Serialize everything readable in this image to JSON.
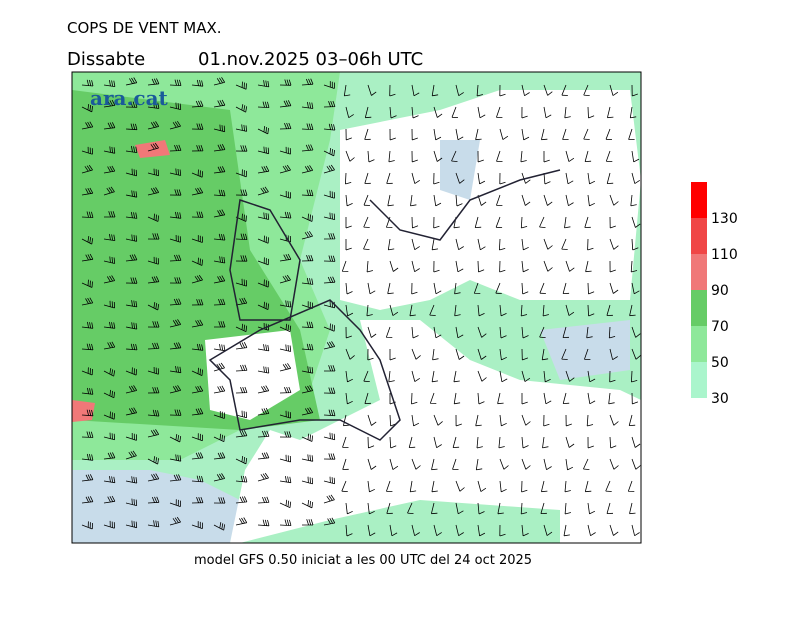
{
  "title": "COPS DE VENT MAX.",
  "subtitle": {
    "day": "Dissabte",
    "date": "01.nov.2025 03–06h UTC"
  },
  "footer": "model GFS 0.50 iniciat a les 00 UTC del 24 oct 2025",
  "watermark": "ara.cat",
  "colorbar": {
    "levels": [
      30,
      50,
      70,
      90,
      110,
      130
    ],
    "colors": [
      "#aaf5cc",
      "#8ee89a",
      "#66cc66",
      "#f07878",
      "#f04646",
      "#ff0000"
    ]
  }
}
